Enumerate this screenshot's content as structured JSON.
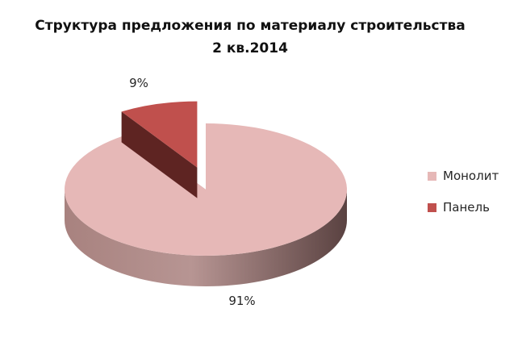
{
  "chart_data": {
    "type": "pie",
    "title": "Структура предложения по материалу строительства",
    "subtitle": "2 кв.2014",
    "categories": [
      "Монолит",
      "Панель"
    ],
    "values": [
      91,
      9
    ],
    "labels": [
      "91%",
      "9%"
    ],
    "legend_position": "right",
    "three_d": true,
    "exploded": [
      "Панель"
    ],
    "colors": [
      "#e6b8b7",
      "#c0504d"
    ]
  }
}
